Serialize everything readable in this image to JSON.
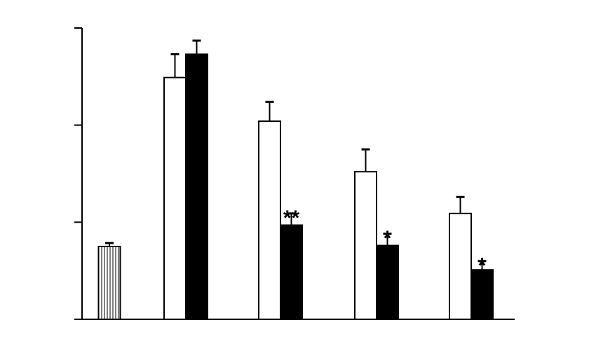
{
  "chart_data": {
    "type": "bar",
    "categories": [
      null,
      null,
      null,
      null,
      null
    ],
    "series": [
      {
        "color": "hatch",
        "values": [
          0.75,
          null,
          null,
          null,
          null
        ],
        "errors": [
          0.035,
          null,
          null,
          null,
          null
        ]
      },
      {
        "color": "#ffffff",
        "values": [
          null,
          2.49,
          2.04,
          1.52,
          1.09
        ],
        "errors": [
          null,
          0.24,
          0.2,
          0.23,
          0.17
        ]
      },
      {
        "color": "#000000",
        "values": [
          null,
          2.73,
          0.97,
          0.76,
          0.51
        ],
        "errors": [
          null,
          0.14,
          0.12,
          0.12,
          0.09
        ]
      }
    ],
    "annotations": [
      {
        "text": "**",
        "category": 2,
        "series": 2
      },
      {
        "text": "*",
        "category": 3,
        "series": 2
      },
      {
        "text": "*",
        "category": 4,
        "series": 2
      }
    ],
    "ylim": [
      0,
      3
    ],
    "yticks": [
      0,
      1,
      2,
      3
    ],
    "grid": false
  }
}
